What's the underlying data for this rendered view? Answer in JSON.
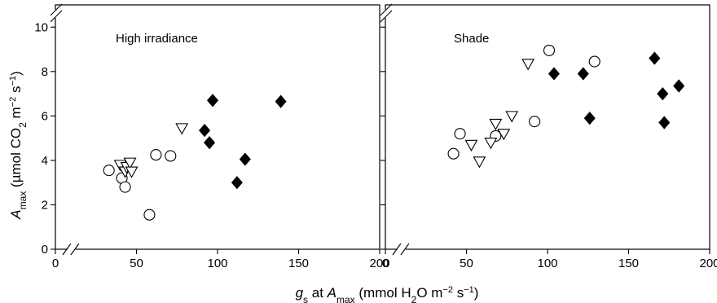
{
  "chart_data": [
    {
      "type": "scatter",
      "title": "High irradiance",
      "xlim": [
        0,
        200
      ],
      "ylim": [
        0,
        11
      ],
      "xticks": [
        "0",
        "50",
        "100",
        "150",
        "200"
      ],
      "yticks": [
        "0",
        "2",
        "4",
        "6",
        "8",
        "10"
      ],
      "series": [
        {
          "marker": "circle-open",
          "points": [
            [
              33,
              3.55
            ],
            [
              41,
              3.2
            ],
            [
              43,
              2.8
            ],
            [
              58,
              1.55
            ],
            [
              62,
              4.25
            ],
            [
              71,
              4.2
            ]
          ]
        },
        {
          "marker": "triangle-down-open",
          "points": [
            [
              40,
              3.8
            ],
            [
              43,
              3.5
            ],
            [
              44,
              3.7
            ],
            [
              46,
              3.9
            ],
            [
              47,
              3.5
            ],
            [
              78,
              5.45
            ]
          ]
        },
        {
          "marker": "diamond-filled",
          "points": [
            [
              92,
              5.35
            ],
            [
              95,
              4.8
            ],
            [
              97,
              6.7
            ],
            [
              112,
              3.0
            ],
            [
              117,
              4.05
            ],
            [
              139,
              6.65
            ]
          ]
        }
      ]
    },
    {
      "type": "scatter",
      "title": "Shade",
      "xlim": [
        0,
        200
      ],
      "ylim": [
        0,
        11
      ],
      "xticks": [
        "0",
        "50",
        "100",
        "150",
        "200"
      ],
      "yticks": [],
      "series": [
        {
          "marker": "circle-open",
          "points": [
            [
              42,
              4.3
            ],
            [
              46,
              5.2
            ],
            [
              68,
              5.1
            ],
            [
              92,
              5.75
            ],
            [
              101,
              8.95
            ],
            [
              129,
              8.45
            ]
          ]
        },
        {
          "marker": "triangle-down-open",
          "points": [
            [
              53,
              4.7
            ],
            [
              58,
              3.95
            ],
            [
              65,
              4.8
            ],
            [
              68,
              5.65
            ],
            [
              73,
              5.2
            ],
            [
              78,
              6.0
            ],
            [
              88,
              8.35
            ]
          ]
        },
        {
          "marker": "diamond-filled",
          "points": [
            [
              104,
              7.9
            ],
            [
              122,
              7.9
            ],
            [
              126,
              5.9
            ],
            [
              166,
              8.6
            ],
            [
              171,
              7.0
            ],
            [
              172,
              5.7
            ],
            [
              181,
              7.35
            ]
          ]
        }
      ]
    }
  ],
  "y_axis_label": {
    "main": "A",
    "main_sub": "max",
    "unit_open": " (µmol CO",
    "unit_sub": "2",
    "unit_mid": " m",
    "unit_sup1": "−2",
    "unit_mid2": " s",
    "unit_sup2": "−1",
    "unit_close": ")"
  },
  "x_axis_label": {
    "var": "g",
    "var_sub": "s",
    "mid": " at ",
    "var2": "A",
    "var2_sub": "max",
    "unit_open": " (mmol H",
    "unit_sub": "2",
    "unit_mid": "O m",
    "unit_sup1": "−2",
    "unit_mid2": " s",
    "unit_sup2": "−1",
    "unit_close": ")"
  },
  "colors": {
    "axis": "#000000",
    "marker_fill": "#000000",
    "marker_open_fill": "#ffffff"
  }
}
